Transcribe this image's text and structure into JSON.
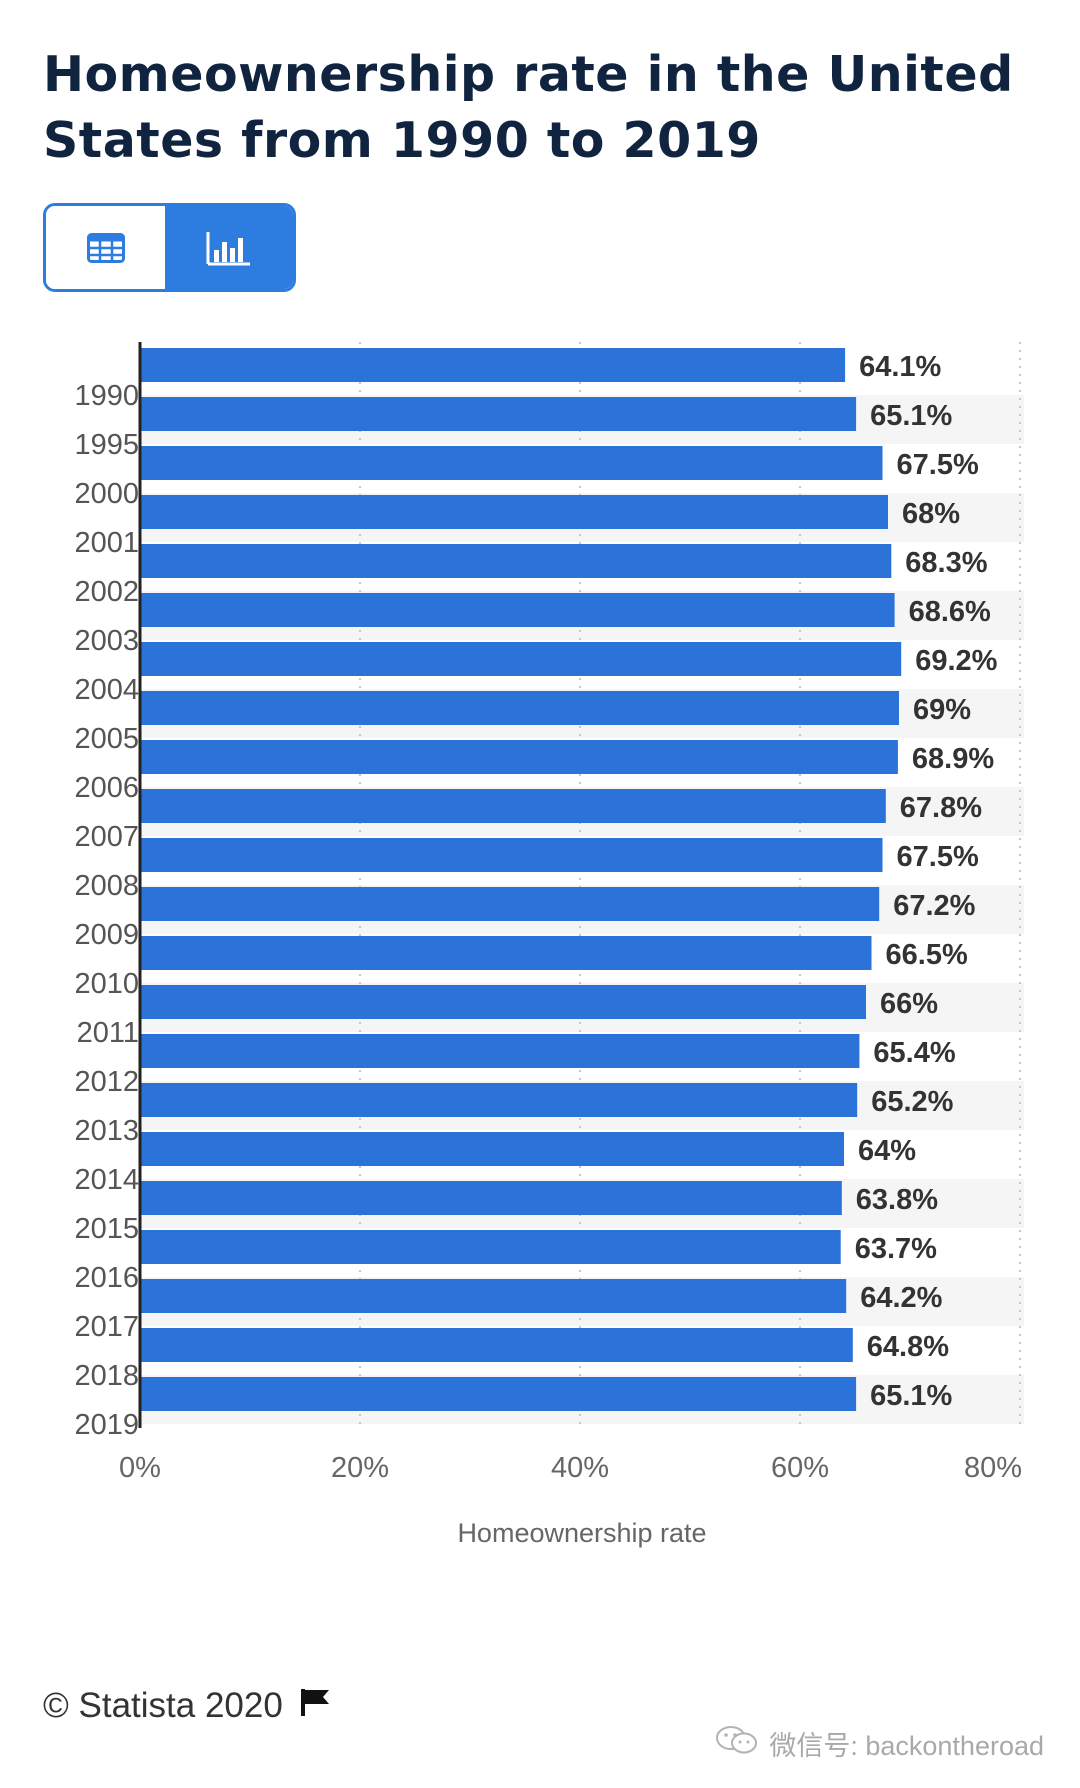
{
  "title": "Homeownership rate in the United States from 1990 to 2019",
  "view_toggle": {
    "options": [
      "table-icon",
      "bar-chart-icon"
    ],
    "active": "bar-chart-icon"
  },
  "footer": {
    "copyright": "© Statista 2020",
    "flag_icon": "flag-icon"
  },
  "watermark": {
    "text": "微信号: backontheroad",
    "icon": "wechat-icon"
  },
  "colors": {
    "bar": "#2b73d9",
    "accent": "#2d7de1",
    "title": "#10233f",
    "stripe": "#f5f5f5"
  },
  "chart_data": {
    "type": "bar",
    "orientation": "horizontal",
    "title": "Homeownership rate in the United States from 1990 to 2019",
    "xlabel": "Homeownership rate",
    "ylabel": "",
    "categories": [
      "1990",
      "1995",
      "2000",
      "2001",
      "2002",
      "2003",
      "2004",
      "2005",
      "2006",
      "2007",
      "2008",
      "2009",
      "2010",
      "2011",
      "2012",
      "2013",
      "2014",
      "2015",
      "2016",
      "2017",
      "2018",
      "2019"
    ],
    "values": [
      64.1,
      65.1,
      67.5,
      68,
      68.3,
      68.6,
      69.2,
      69,
      68.9,
      67.8,
      67.5,
      67.2,
      66.5,
      66,
      65.4,
      65.2,
      64,
      63.8,
      63.7,
      64.2,
      64.8,
      65.1
    ],
    "value_labels": [
      "64.1%",
      "65.1%",
      "67.5%",
      "68%",
      "68.3%",
      "68.6%",
      "69.2%",
      "69%",
      "68.9%",
      "67.8%",
      "67.5%",
      "67.2%",
      "66.5%",
      "66%",
      "65.4%",
      "65.2%",
      "64%",
      "63.8%",
      "63.7%",
      "64.2%",
      "64.8%",
      "65.1%"
    ],
    "xlim": [
      0,
      80
    ],
    "xticks": [
      "0%",
      "20%",
      "40%",
      "60%",
      "80%"
    ],
    "grid": true,
    "legend": "none"
  }
}
